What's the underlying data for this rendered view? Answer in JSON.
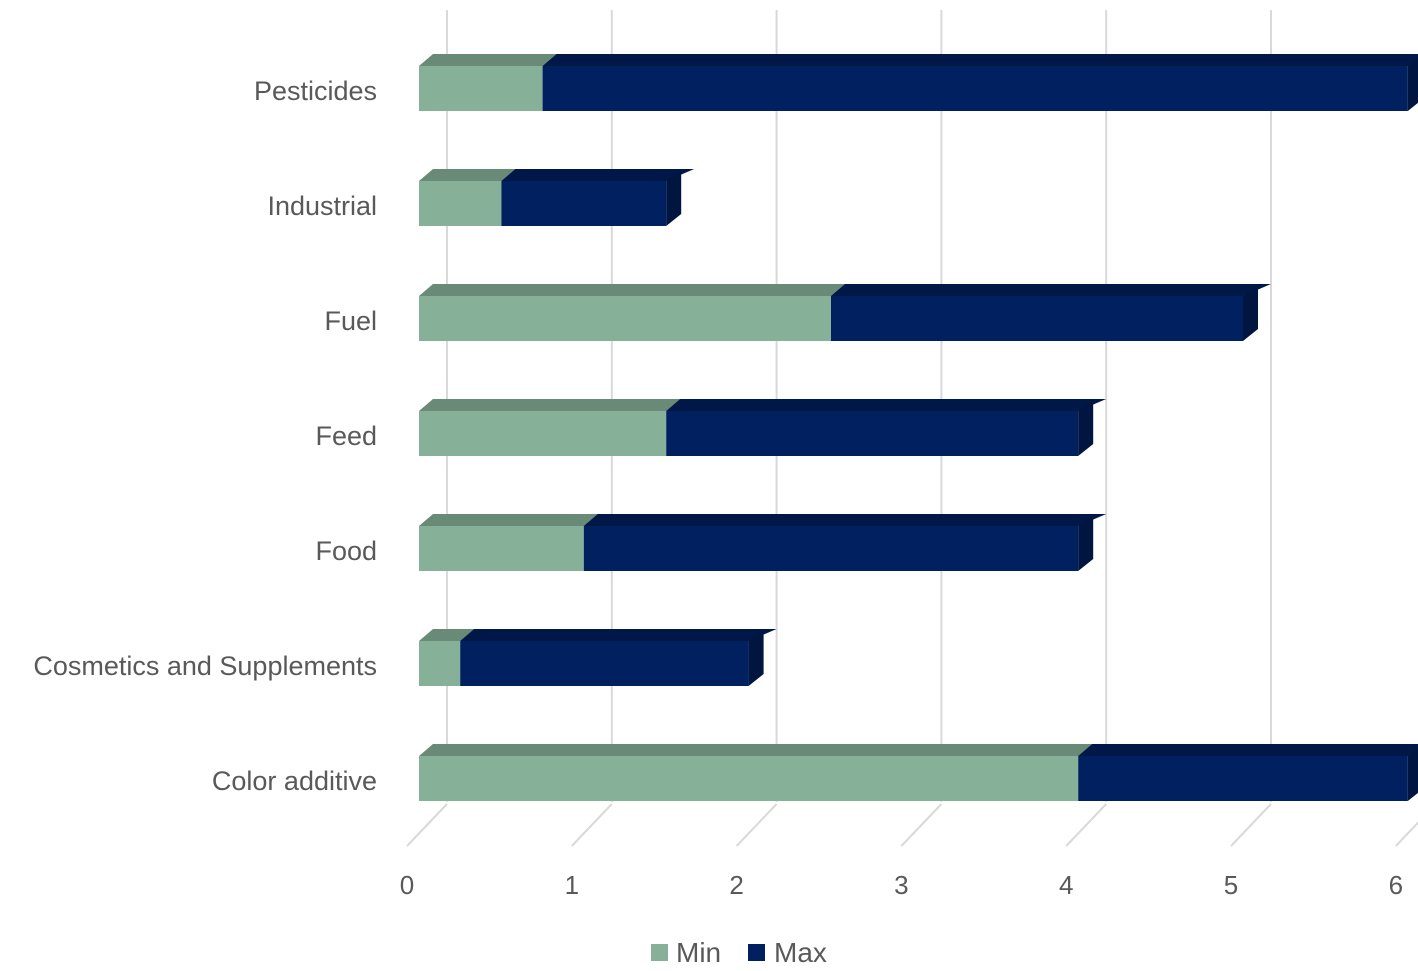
{
  "chart_data": {
    "type": "bar",
    "orientation": "horizontal",
    "stacked": true,
    "style": "3d",
    "categories": [
      "Pesticides",
      "Industrial",
      "Fuel",
      "Feed",
      "Food",
      "Cosmetics and Supplements",
      "Color additive"
    ],
    "series": [
      {
        "name": "Min",
        "values": [
          0.75,
          0.5,
          2.5,
          1.5,
          1.0,
          0.25,
          4.0
        ]
      },
      {
        "name": "Max",
        "values": [
          5.25,
          1.0,
          2.5,
          2.5,
          3.0,
          1.75,
          2.0
        ]
      }
    ],
    "x_ticks": [
      "0",
      "1",
      "2",
      "3",
      "4",
      "5",
      "6"
    ],
    "xlim": [
      0,
      6
    ],
    "grid": true,
    "legend_position": "bottom",
    "colors": {
      "Min": "#86b098",
      "Min_top": "#6a8a78",
      "Max": "#002060",
      "Max_top": "#001848",
      "Max_side": "#00153f",
      "grid": "#d9d9d9",
      "text": "#595959"
    }
  }
}
